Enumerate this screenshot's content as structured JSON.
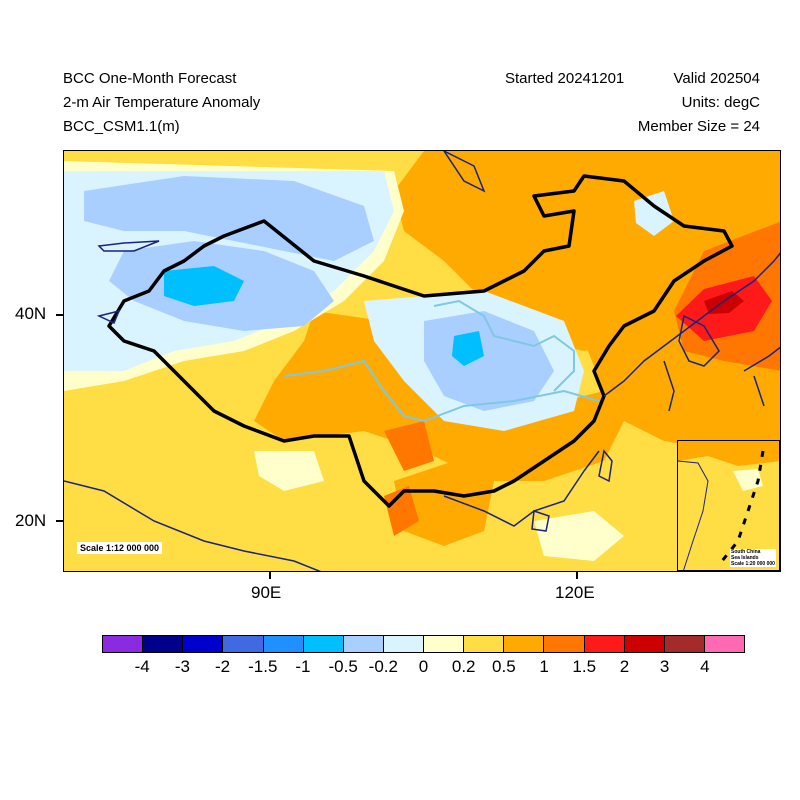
{
  "header": {
    "title": "BCC One-Month Forecast",
    "variable": "2-m Air Temperature Anomaly",
    "model": "BCC_CSM1.1(m)",
    "started": "Started 20241201",
    "valid": "Valid 202504",
    "units": "Units: degC",
    "member_size": "Member Size = 24"
  },
  "axes": {
    "x_ticks": [
      {
        "label": "90E",
        "value": 90
      },
      {
        "label": "120E",
        "value": 120
      }
    ],
    "y_ticks": [
      {
        "label": "40N",
        "value": 40
      },
      {
        "label": "20N",
        "value": 20
      }
    ]
  },
  "map": {
    "scale_label": "Scale 1:12 000 000",
    "inset_title_1": "South China",
    "inset_title_2": "Sea Islands",
    "inset_scale": "Scale 1:20 000 000"
  },
  "colorbar": {
    "colors": [
      "#8a2be2",
      "#00008b",
      "#0000cd",
      "#4169e1",
      "#1e90ff",
      "#00bfff",
      "#a8cfff",
      "#d9f4ff",
      "#ffffcc",
      "#ffdd44",
      "#ffaa00",
      "#ff7700",
      "#ff1a1a",
      "#cc0000",
      "#a52a2a",
      "#ff69b4"
    ],
    "labels": [
      "-4",
      "-3",
      "-2",
      "-1.5",
      "-1",
      "-0.5",
      "-0.2",
      "0",
      "0.2",
      "0.5",
      "1",
      "1.5",
      "2",
      "3",
      "4"
    ]
  }
}
